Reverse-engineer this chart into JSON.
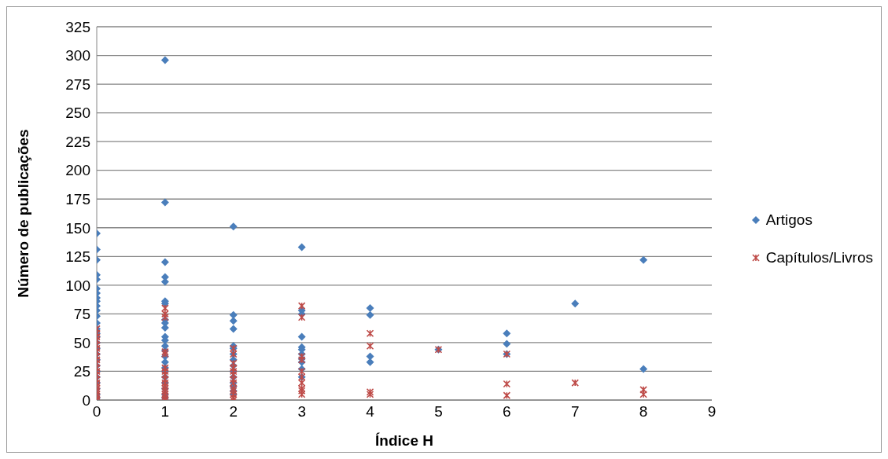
{
  "chart_data": {
    "type": "scatter",
    "xlabel": "Índice H",
    "ylabel": "Número de publicações",
    "xlim": [
      0,
      9
    ],
    "xticks": [
      0,
      1,
      2,
      3,
      4,
      5,
      6,
      7,
      8,
      9
    ],
    "ylim": [
      0,
      325
    ],
    "yticks": [
      0,
      25,
      50,
      75,
      100,
      125,
      150,
      175,
      200,
      225,
      250,
      275,
      300,
      325
    ],
    "grid": "y",
    "legend": "right",
    "series": [
      {
        "name": "Artigos",
        "color": "#4a7ebb",
        "marker": "diamond",
        "x": [
          0,
          0,
          0,
          0,
          0,
          0,
          0,
          0,
          0,
          0,
          0,
          0,
          0,
          0,
          0,
          0,
          0,
          0,
          0,
          0,
          0,
          0,
          0,
          0,
          0,
          0,
          0,
          1,
          1,
          1,
          1,
          1,
          1,
          1,
          1,
          1,
          1,
          1,
          1,
          1,
          1,
          1,
          1,
          1,
          1,
          1,
          1,
          1,
          1,
          1,
          2,
          2,
          2,
          2,
          2,
          2,
          2,
          2,
          2,
          2,
          2,
          2,
          2,
          2,
          2,
          3,
          3,
          3,
          3,
          3,
          3,
          3,
          3,
          3,
          3,
          3,
          4,
          4,
          4,
          4,
          5,
          6,
          6,
          6,
          7,
          8,
          8
        ],
        "values": [
          145,
          131,
          122,
          109,
          105,
          97,
          93,
          89,
          86,
          82,
          78,
          73,
          67,
          62,
          58,
          55,
          50,
          45,
          40,
          35,
          30,
          25,
          20,
          15,
          10,
          5,
          2,
          296,
          172,
          120,
          107,
          103,
          86,
          84,
          70,
          67,
          63,
          55,
          52,
          47,
          43,
          38,
          33,
          28,
          25,
          20,
          15,
          10,
          5,
          2,
          151,
          74,
          69,
          62,
          47,
          45,
          40,
          35,
          30,
          25,
          20,
          15,
          12,
          8,
          5,
          133,
          78,
          75,
          55,
          46,
          44,
          40,
          36,
          33,
          27,
          20,
          80,
          74,
          38,
          33,
          44,
          58,
          49,
          40,
          84,
          122,
          27
        ]
      },
      {
        "name": "Capítulos/Livros",
        "color": "#be4b48",
        "marker": "cross",
        "x": [
          0,
          0,
          0,
          0,
          0,
          0,
          0,
          0,
          0,
          0,
          0,
          0,
          0,
          0,
          0,
          0,
          0,
          0,
          0,
          0,
          0,
          0,
          1,
          1,
          1,
          1,
          1,
          1,
          1,
          1,
          1,
          1,
          1,
          1,
          1,
          1,
          1,
          1,
          1,
          2,
          2,
          2,
          2,
          2,
          2,
          2,
          2,
          2,
          2,
          2,
          2,
          2,
          3,
          3,
          3,
          3,
          3,
          3,
          3,
          3,
          3,
          3,
          4,
          4,
          4,
          4,
          5,
          6,
          6,
          6,
          7,
          8,
          8
        ],
        "values": [
          62,
          58,
          55,
          52,
          48,
          45,
          42,
          38,
          35,
          32,
          28,
          25,
          22,
          18,
          15,
          12,
          10,
          8,
          5,
          3,
          1,
          0,
          80,
          75,
          72,
          42,
          40,
          28,
          25,
          22,
          18,
          15,
          12,
          10,
          8,
          5,
          3,
          1,
          0,
          45,
          40,
          32,
          28,
          25,
          22,
          18,
          15,
          10,
          8,
          5,
          2,
          0,
          82,
          72,
          38,
          35,
          25,
          20,
          15,
          10,
          8,
          5,
          58,
          47,
          7,
          5,
          44,
          40,
          14,
          4,
          15,
          9,
          5
        ]
      }
    ]
  }
}
